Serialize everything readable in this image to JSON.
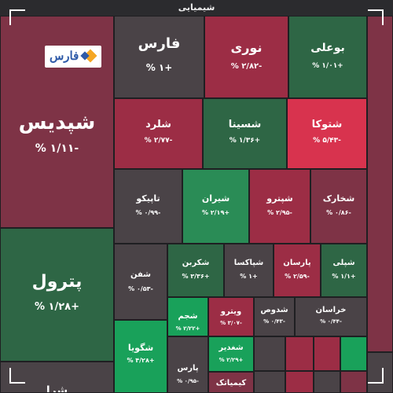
{
  "header": {
    "title": "شیمیایی"
  },
  "logo": {
    "text": "فارس"
  },
  "tiles": [
    {
      "name": "شپدیس",
      "pct": "% ۱/۱۱-"
    },
    {
      "name": "فارس",
      "pct": "% ۱+"
    },
    {
      "name": "نوری",
      "pct": "% ۲/۸۲-"
    },
    {
      "name": "بوعلی",
      "pct": "% ۱/۰۱+"
    },
    {
      "name": "شلرد",
      "pct": "% ۲/۷۷-"
    },
    {
      "name": "شسینا",
      "pct": "% ۱/۳۶+"
    },
    {
      "name": "شتوکا",
      "pct": "% ۵/۴۳-"
    },
    {
      "name": "تاپیکو",
      "pct": "% ۰/۹۹-"
    },
    {
      "name": "شیران",
      "pct": "% ۲/۱۹+"
    },
    {
      "name": "شپترو",
      "pct": "% ۲/۹۵-"
    },
    {
      "name": "شخارک",
      "pct": "% ۰/۸۶-"
    },
    {
      "name": "پترول",
      "pct": "% ۱/۲۸+"
    },
    {
      "name": "شفن",
      "pct": "% ۰/۵۳-"
    },
    {
      "name": "شکربن",
      "pct": "% ۳/۳۶+"
    },
    {
      "name": "شپاکسا",
      "pct": "% ۱+"
    },
    {
      "name": "پارسان",
      "pct": "% ۲/۵۹-"
    },
    {
      "name": "شپلی",
      "pct": "% ۱/۱+"
    },
    {
      "name": "شجم",
      "pct": "% ۲/۲۲+"
    },
    {
      "name": "ویترو",
      "pct": "% ۳/۰۷-"
    },
    {
      "name": "شدوص",
      "pct": "% ۰/۴۳-"
    },
    {
      "name": "خراسان",
      "pct": "% ۰/۴۴-"
    },
    {
      "name": "شگویا",
      "pct": "% ۴/۲۸+"
    },
    {
      "name": "شغدیر",
      "pct": "% ۲/۲۹+"
    },
    {
      "name": "پارس",
      "pct": "% ۰/۹۵-"
    },
    {
      "name": "کیمیاتک",
      "pct": ""
    },
    {
      "name": "شرا",
      "pct": ""
    }
  ]
}
